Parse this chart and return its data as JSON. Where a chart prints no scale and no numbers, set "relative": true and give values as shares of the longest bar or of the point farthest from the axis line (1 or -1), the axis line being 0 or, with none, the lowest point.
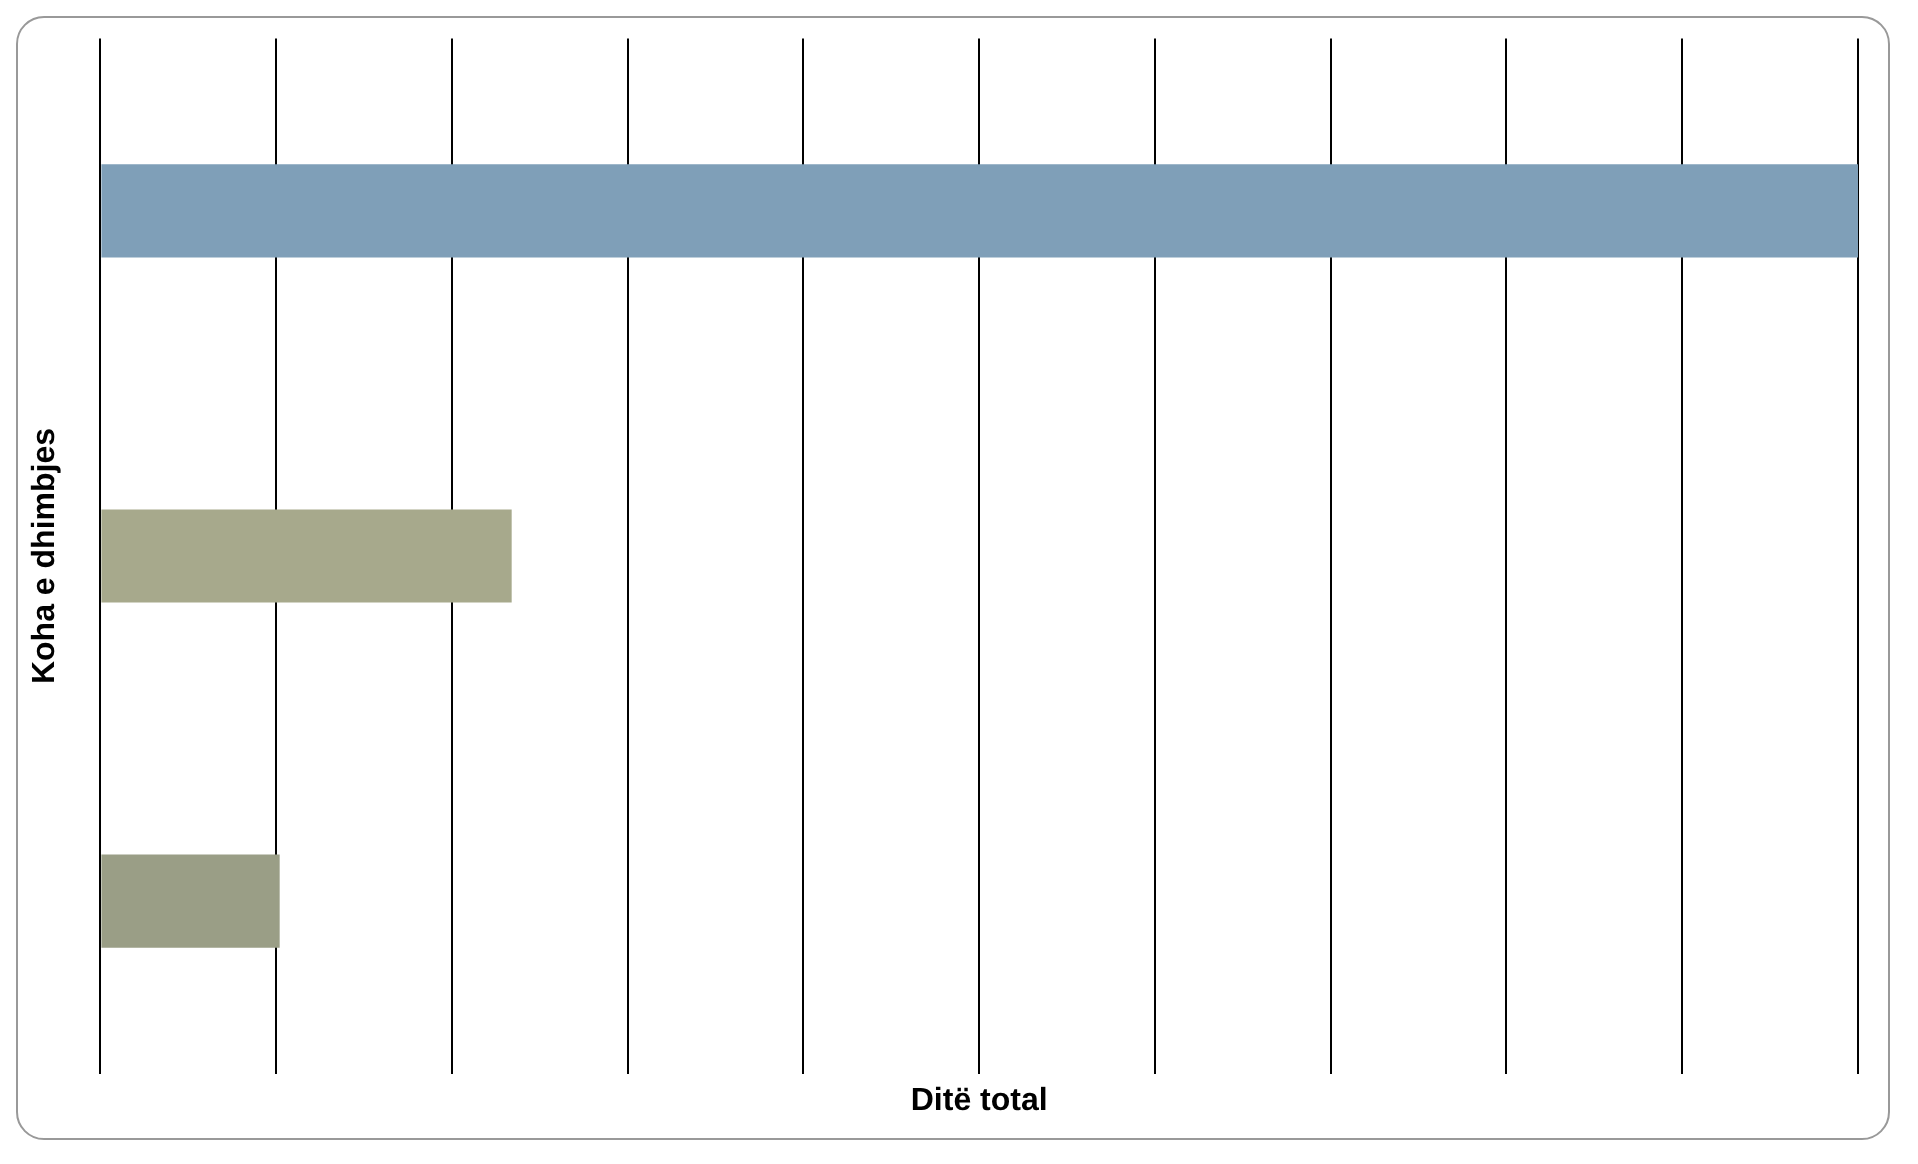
{
  "chart_data": {
    "type": "bar",
    "orientation": "horizontal",
    "relative": true,
    "categories": [
      null,
      null,
      null
    ],
    "values": [
      1,
      0.234,
      0.102
    ],
    "colors": [
      "#7f9fb8",
      "#a7a98c",
      "#9a9e86"
    ],
    "xlabel": "Ditë total",
    "ylabel": "Koha e dhimbjes",
    "grid": "x",
    "legend": false
  }
}
